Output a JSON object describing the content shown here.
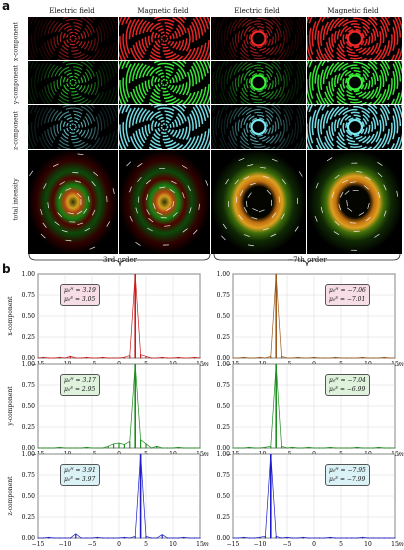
{
  "panel_a": {
    "label": "a",
    "column_titles": [
      "Electric field",
      "Magnetic field",
      "Electric field",
      "Magnetic field"
    ],
    "row_labels": [
      "x-component",
      "y-component",
      "z-component",
      "total intensity"
    ],
    "order_labels": [
      "3rd order",
      "−7th order"
    ]
  },
  "panel_b": {
    "label": "b"
  },
  "chart_data": [
    {
      "type": "bar",
      "row": "x-component",
      "order": "3rd order",
      "ylabel": "x-component",
      "xlabel": "m",
      "xlim": [
        -15,
        15
      ],
      "ylim": [
        0,
        1
      ],
      "color": "#c81e1e",
      "peak_x": 3,
      "peak_y": 1.0,
      "minor_bars": [
        {
          "x": -14,
          "y": 0.01
        },
        {
          "x": -11,
          "y": 0.01
        },
        {
          "x": -9,
          "y": 0.02
        },
        {
          "x": -6,
          "y": 0.01
        },
        {
          "x": -3,
          "y": 0.01
        },
        {
          "x": 1,
          "y": 0.01
        },
        {
          "x": 2,
          "y": 0.03
        },
        {
          "x": 4,
          "y": 0.04
        },
        {
          "x": 5,
          "y": 0.02
        },
        {
          "x": 8,
          "y": 0.01
        },
        {
          "x": 11,
          "y": 0.01
        },
        {
          "x": 14,
          "y": 0.01
        }
      ],
      "legend": {
        "line1": "μ₀ᴴ = 3.19",
        "line2": "μ₀ᴱ = 3.05",
        "bg": "#f6dde6"
      }
    },
    {
      "type": "bar",
      "row": "x-component",
      "order": "−7th order",
      "ylabel": "",
      "xlabel": "m",
      "xlim": [
        -15,
        15
      ],
      "ylim": [
        0,
        1
      ],
      "color": "#9a5a1c",
      "peak_x": -7,
      "peak_y": 1.0,
      "minor_bars": [
        {
          "x": -13,
          "y": 0.01
        },
        {
          "x": -10,
          "y": 0.01
        },
        {
          "x": -8,
          "y": 0.02
        },
        {
          "x": -6,
          "y": 0.02
        },
        {
          "x": -3,
          "y": 0.01
        },
        {
          "x": 0,
          "y": 0.01
        },
        {
          "x": 4,
          "y": 0.01
        },
        {
          "x": 9,
          "y": 0.01
        },
        {
          "x": 13,
          "y": 0.01
        }
      ],
      "legend": {
        "line1": "μ₀ᴴ = −7.06",
        "line2": "μ₀ᴱ = −7.01",
        "bg": "#f6dde6"
      }
    },
    {
      "type": "bar",
      "row": "y-component",
      "order": "3rd order",
      "ylabel": "y-component",
      "xlabel": "m",
      "xlim": [
        -15,
        15
      ],
      "ylim": [
        0,
        1
      ],
      "color": "#1e8c1e",
      "peak_x": 3,
      "peak_y": 1.0,
      "minor_bars": [
        {
          "x": -11,
          "y": 0.01
        },
        {
          "x": -6,
          "y": 0.01
        },
        {
          "x": -2,
          "y": 0.02
        },
        {
          "x": -1,
          "y": 0.05
        },
        {
          "x": 0,
          "y": 0.06
        },
        {
          "x": 1,
          "y": 0.04
        },
        {
          "x": 2,
          "y": 0.08
        },
        {
          "x": 4,
          "y": 0.1
        },
        {
          "x": 5,
          "y": 0.05
        },
        {
          "x": 7,
          "y": 0.02
        },
        {
          "x": 11,
          "y": 0.01
        }
      ],
      "legend": {
        "line1": "μ₀ᴴ = 3.17",
        "line2": "μ₀ᴱ = 2.95",
        "bg": "#def2dc"
      }
    },
    {
      "type": "bar",
      "row": "y-component",
      "order": "−7th order",
      "ylabel": "",
      "xlabel": "m",
      "xlim": [
        -15,
        15
      ],
      "ylim": [
        0,
        1
      ],
      "color": "#1e8c1e",
      "peak_x": -7,
      "peak_y": 1.0,
      "minor_bars": [
        {
          "x": -12,
          "y": 0.01
        },
        {
          "x": -9,
          "y": 0.01
        },
        {
          "x": -8,
          "y": 0.02
        },
        {
          "x": -6,
          "y": 0.02
        },
        {
          "x": -4,
          "y": 0.01
        },
        {
          "x": -1,
          "y": 0.01
        },
        {
          "x": 3,
          "y": 0.01
        },
        {
          "x": 8,
          "y": 0.01
        },
        {
          "x": 12,
          "y": 0.01
        }
      ],
      "legend": {
        "line1": "μ₀ᴴ = −7.04",
        "line2": "μ₀ᴱ = −6.99",
        "bg": "#def2dc"
      }
    },
    {
      "type": "bar",
      "row": "z-component",
      "order": "3rd order",
      "ylabel": "z-component",
      "xlabel": "m",
      "xlim": [
        -15,
        15
      ],
      "ylim": [
        0,
        1
      ],
      "color": "#1e1ec8",
      "peak_x": 4,
      "peak_y": 1.0,
      "minor_bars": [
        {
          "x": -13,
          "y": 0.01
        },
        {
          "x": -8,
          "y": 0.05
        },
        {
          "x": -4,
          "y": 0.01
        },
        {
          "x": 1,
          "y": 0.01
        },
        {
          "x": 3,
          "y": 0.02
        },
        {
          "x": 5,
          "y": 0.02
        },
        {
          "x": 8,
          "y": 0.04
        },
        {
          "x": 12,
          "y": 0.01
        }
      ],
      "legend": {
        "line1": "μ₀ᴴ = 3.91",
        "line2": "μ₀ᴱ = 3.97",
        "bg": "#daf1f6"
      }
    },
    {
      "type": "bar",
      "row": "z-component",
      "order": "−7th order",
      "ylabel": "",
      "xlabel": "m",
      "xlim": [
        -15,
        15
      ],
      "ylim": [
        0,
        1
      ],
      "color": "#1e1ec8",
      "peak_x": -8,
      "peak_y": 1.0,
      "minor_bars": [
        {
          "x": -13,
          "y": 0.01
        },
        {
          "x": -10,
          "y": 0.01
        },
        {
          "x": -9,
          "y": 0.02
        },
        {
          "x": -7,
          "y": 0.02
        },
        {
          "x": -5,
          "y": 0.01
        },
        {
          "x": -2,
          "y": 0.01
        },
        {
          "x": 3,
          "y": 0.01
        },
        {
          "x": 9,
          "y": 0.01
        }
      ],
      "legend": {
        "line1": "μ₀ᴴ = −7.95",
        "line2": "μ₀ᴱ = −7.99",
        "bg": "#daf1f6"
      }
    }
  ],
  "axes": {
    "yticks": [
      "0.00",
      "0.25",
      "0.50",
      "0.75",
      "1.00"
    ],
    "xticks": [
      "−15",
      "−10",
      "−5",
      "0",
      "5",
      "10",
      "15"
    ],
    "xlabel": "m"
  }
}
